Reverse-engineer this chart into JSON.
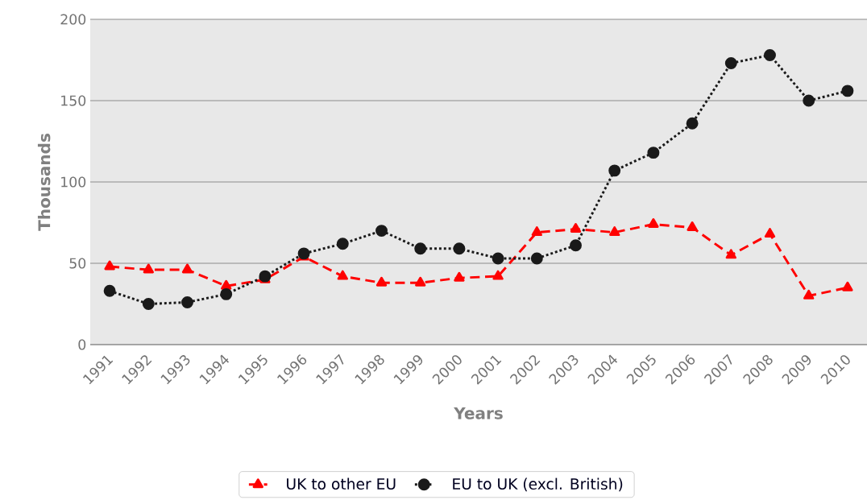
{
  "chart_data": {
    "type": "line",
    "xlabel": "Years",
    "ylabel": "Thousands",
    "categories": [
      "1991",
      "1992",
      "1993",
      "1994",
      "1995",
      "1996",
      "1997",
      "1998",
      "1999",
      "2000",
      "2001",
      "2002",
      "2003",
      "2004",
      "2005",
      "2006",
      "2007",
      "2008",
      "2009",
      "2010"
    ],
    "series": [
      {
        "name": "UK to other EU",
        "color": "#ff0000",
        "marker": "triangle",
        "line_style": "dashed",
        "values": [
          48,
          46,
          46,
          36,
          40,
          54,
          42,
          38,
          38,
          41,
          42,
          69,
          71,
          69,
          74,
          72,
          55,
          68,
          30,
          35
        ]
      },
      {
        "name": "EU to UK (excl. British)",
        "color": "#1a1a1a",
        "marker": "circle",
        "line_style": "dotted",
        "values": [
          33,
          25,
          26,
          31,
          42,
          56,
          62,
          70,
          59,
          59,
          53,
          53,
          61,
          107,
          118,
          136,
          173,
          178,
          150,
          156
        ]
      }
    ],
    "ylim": [
      0,
      200
    ],
    "yticks": [
      0,
      50,
      100,
      150,
      200
    ],
    "grid": "y",
    "legend": "bottom"
  }
}
